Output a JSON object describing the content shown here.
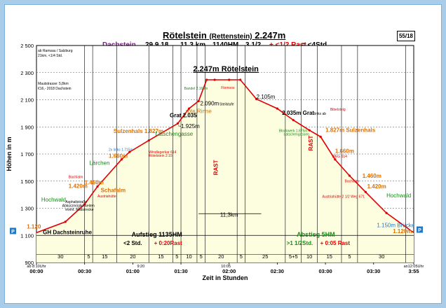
{
  "header": {
    "title": "Rötelstein",
    "title_alt": "(Rettenstein)",
    "title_height": "2.247m",
    "region": "Dachstein",
    "date": "29.9.18",
    "distance": "11,3 km",
    "elevation_gain": "1140HM",
    "walk_time": "3 1/2",
    "rest_time": "+ <1/2 Rast",
    "total_time": "= <4Std.",
    "page_number": "55/18"
  },
  "notes": {
    "top_left": [
      "ab Ramsau / Salzburg",
      "21km, <1/4 Std."
    ],
    "mid_left": [
      "Mautstrasse: 5,8km",
      "€16,-  2018  Dachstein"
    ]
  },
  "colors": {
    "area_fill": "#fdfde0",
    "profile_line": "#e00000",
    "green_label": "#1a8a1a",
    "orange_label": "#e07000",
    "blue_label": "#1f78c8",
    "purple_label": "#7a1f86",
    "frame": "#a9cde8"
  },
  "chart_data": {
    "type": "area",
    "title": "2.247m Rötelstein",
    "xlabel": "Zeit in Stunden",
    "ylabel": "Höhen in m",
    "x_unit": "minutes",
    "xlim": [
      0,
      235
    ],
    "ylim": [
      900,
      2500
    ],
    "y_ticks": [
      900,
      1100,
      1300,
      1500,
      1700,
      1900,
      2100,
      2300,
      2500
    ],
    "y_tick_labels": [
      "900",
      "1 100",
      "1 300",
      "1 500",
      "1 700",
      "1 900",
      "2 100",
      "2 300",
      "2 500"
    ],
    "x_ticks": [
      {
        "x": 0,
        "label": "00:00"
      },
      {
        "x": 30,
        "label": "00:30"
      },
      {
        "x": 60,
        "label": "01:00"
      },
      {
        "x": 90,
        "label": "01:30"
      },
      {
        "x": 120,
        "label": "02:00"
      },
      {
        "x": 150,
        "label": "02:30"
      },
      {
        "x": 180,
        "label": "03:00"
      },
      {
        "x": 210,
        "label": "03:30"
      },
      {
        "x": 235,
        "label": "3:55"
      }
    ],
    "x_start_label": "ab 8:10Uhr",
    "x_end_label": "an12:05Uhr",
    "x_mid_labels": [
      {
        "x": 65,
        "label": "9:20"
      },
      {
        "x": 118,
        "label": "10:05"
      }
    ],
    "profile": {
      "x": [
        0,
        18,
        30,
        38,
        53,
        58,
        70,
        88,
        95,
        101,
        106,
        111,
        120,
        127,
        137,
        150,
        160,
        170,
        177,
        186,
        195,
        205,
        218,
        235
      ],
      "y": [
        1120,
        1200,
        1330,
        1460,
        1660,
        1715,
        1800,
        1925,
        2035,
        2090,
        2247,
        2247,
        2247,
        2247,
        2105,
        2035,
        1950,
        1875,
        1827,
        1660,
        1540,
        1420,
        1265,
        1120
      ]
    },
    "segments": [
      {
        "start": 0,
        "end": 30,
        "label": "30"
      },
      {
        "start": 30,
        "end": 35,
        "label": "5"
      },
      {
        "start": 35,
        "end": 50,
        "label": "15"
      },
      {
        "start": 50,
        "end": 70,
        "label": "20"
      },
      {
        "start": 70,
        "end": 85,
        "label": "15"
      },
      {
        "start": 85,
        "end": 90,
        "label": "5"
      },
      {
        "start": 90,
        "end": 100,
        "label": "10"
      },
      {
        "start": 100,
        "end": 105,
        "label": "5"
      },
      {
        "start": 105,
        "end": 125,
        "label": "20"
      },
      {
        "start": 125,
        "end": 130,
        "label": "5"
      },
      {
        "start": 130,
        "end": 155,
        "label": "25"
      },
      {
        "start": 155,
        "end": 165,
        "label": "5+5"
      },
      {
        "start": 165,
        "end": 175,
        "label": "10"
      },
      {
        "start": 175,
        "end": 190,
        "label": "15"
      },
      {
        "start": 190,
        "end": 200,
        "label": "5"
      },
      {
        "start": 200,
        "end": 230,
        "label": "30"
      }
    ],
    "divider_lines": [
      30,
      35,
      50,
      70,
      85,
      90,
      100,
      105,
      125,
      130,
      155,
      165,
      175,
      190,
      200,
      230
    ],
    "distance_label": "11,3km",
    "ascent": {
      "line1": "Aufstieg 1135HM",
      "line2a": "<2 Std.",
      "line2b": "+ 0:20Rast"
    },
    "descent": {
      "line1": "Abstieg 5HM",
      "line2a": ">1 1/2Std.",
      "line2b": "+ 0:05 Rast"
    },
    "rest_markers": [
      {
        "x": 113,
        "y": 1600,
        "label": "RAST"
      },
      {
        "x": 172,
        "y": 1780,
        "label": "RAST"
      }
    ],
    "annotations": [
      {
        "x": 4,
        "y": 1110,
        "label": "GH Dachsteinruhe",
        "color": "#000000",
        "size": 8,
        "bold": true
      },
      {
        "x": -6,
        "y": 1150,
        "label": "1.120",
        "color": "#e07000",
        "size": 8,
        "bold": true
      },
      {
        "x": 3,
        "y": 1350,
        "label": "Hochwald",
        "color": "#1a8a1a",
        "size": 8,
        "bold": false
      },
      {
        "x": 18,
        "y": 1338,
        "label": "Asphaltstraße",
        "color": "#000000",
        "size": 5,
        "bold": false
      },
      {
        "x": 16,
        "y": 1310,
        "label": "Abkürzmöglichkeiten",
        "color": "#000000",
        "size": 5,
        "bold": false
      },
      {
        "x": 18,
        "y": 1282,
        "label": "event. Radstrecke",
        "color": "#000000",
        "size": 5,
        "bold": false
      },
      {
        "x": 20,
        "y": 1450,
        "label": "1.420m",
        "color": "#e07000",
        "size": 8,
        "bold": true
      },
      {
        "x": 20,
        "y": 1522,
        "label": "Bachlalm",
        "color": "#e00000",
        "size": 5,
        "bold": false
      },
      {
        "x": 30,
        "y": 1475,
        "label": "1.460m",
        "color": "#e07000",
        "size": 8,
        "bold": true
      },
      {
        "x": 40,
        "y": 1420,
        "label": "Schafalm",
        "color": "#e07000",
        "size": 8,
        "bold": true
      },
      {
        "x": 38,
        "y": 1380,
        "label": "Austriahütte",
        "color": "#e00000",
        "size": 5,
        "bold": false
      },
      {
        "x": 33,
        "y": 1620,
        "label": "Lärchen",
        "color": "#1a8a1a",
        "size": 8,
        "bold": false
      },
      {
        "x": 45,
        "y": 1672,
        "label": "1.660m",
        "color": "#e07000",
        "size": 8,
        "bold": true
      },
      {
        "x": 45,
        "y": 1722,
        "label": "2x links 1.715m",
        "color": "#1f78c8",
        "size": 5,
        "bold": false
      },
      {
        "x": 70,
        "y": 1705,
        "label": "Windlegerkar 614",
        "color": "#e00000",
        "size": 5,
        "bold": false
      },
      {
        "x": 70,
        "y": 1680,
        "label": "Rötelstein 2:15",
        "color": "#e00000",
        "size": 5,
        "bold": false
      },
      {
        "x": 48,
        "y": 1855,
        "label": "Sulzenhals 1.827m",
        "color": "#e07000",
        "size": 8,
        "bold": true
      },
      {
        "x": 74,
        "y": 1835,
        "label": "Latschengasse",
        "color": "#1a8a1a",
        "size": 8,
        "bold": false
      },
      {
        "x": 83,
        "y": 1970,
        "label": "Grat 2.035",
        "color": "#000000",
        "size": 8,
        "bold": true
      },
      {
        "x": 88,
        "y": 1890,
        "label": "~1.925m",
        "color": "#000000",
        "size": 8,
        "bold": false
      },
      {
        "x": 93,
        "y": 2002,
        "label": "rote Rinne",
        "color": "#e07000",
        "size": 8,
        "bold": false
      },
      {
        "x": 92,
        "y": 2175,
        "label": "Bandel 2.160m",
        "color": "#1a8a1a",
        "size": 5,
        "bold": false
      },
      {
        "x": 102,
        "y": 2058,
        "label": "2.090m",
        "color": "#000000",
        "size": 8,
        "bold": false
      },
      {
        "x": 114,
        "y": 2058,
        "label": "Steilstufe",
        "color": "#000000",
        "size": 5,
        "bold": false
      },
      {
        "x": 115,
        "y": 2180,
        "label": "Flomoos",
        "color": "#e00000",
        "size": 5,
        "bold": false
      },
      {
        "x": 137,
        "y": 2108,
        "label": "2.105m",
        "color": "#000000",
        "size": 8,
        "bold": false
      },
      {
        "x": 153,
        "y": 1990,
        "label": "2.035m Grat",
        "color": "#000000",
        "size": 8,
        "bold": true
      },
      {
        "x": 173,
        "y": 1990,
        "label": "links ab",
        "color": "#000000",
        "size": 5,
        "bold": false
      },
      {
        "x": 151,
        "y": 1862,
        "label": "Blockwerk 1.875m",
        "color": "#1a8a1a",
        "size": 5,
        "bold": false
      },
      {
        "x": 154,
        "y": 1838,
        "label": "Latschengassen",
        "color": "#1a8a1a",
        "size": 5,
        "bold": false
      },
      {
        "x": 183,
        "y": 2020,
        "label": "Bibelsteig",
        "color": "#e00000",
        "size": 5,
        "bold": false
      },
      {
        "x": 180,
        "y": 1862,
        "label": "1.827m Sulzenhals",
        "color": "#e07000",
        "size": 8,
        "bold": true
      },
      {
        "x": 186,
        "y": 1708,
        "label": "1.660m",
        "color": "#e07000",
        "size": 8,
        "bold": true
      },
      {
        "x": 184,
        "y": 1675,
        "label": "WEG 614",
        "color": "#e00000",
        "size": 5,
        "bold": false
      },
      {
        "x": 203,
        "y": 1525,
        "label": "1.460m",
        "color": "#e07000",
        "size": 8,
        "bold": true
      },
      {
        "x": 192,
        "y": 1492,
        "label": "Bachlalm",
        "color": "#e00000",
        "size": 5,
        "bold": false
      },
      {
        "x": 206,
        "y": 1448,
        "label": "1.420m",
        "color": "#e07000",
        "size": 8,
        "bold": true
      },
      {
        "x": 178,
        "y": 1378,
        "label": "Austriahütte 2 1/2 Weg 671",
        "color": "#e00000",
        "size": 5,
        "bold": false
      },
      {
        "x": 218,
        "y": 1380,
        "label": "Hochwald",
        "color": "#1a8a1a",
        "size": 8,
        "bold": false
      },
      {
        "x": 212,
        "y": 1160,
        "label": "1.150m Brücke",
        "color": "#1f78c8",
        "size": 8,
        "bold": false
      },
      {
        "x": 222,
        "y": 1118,
        "label": "1.120m",
        "color": "#e07000",
        "size": 8,
        "bold": true
      }
    ]
  }
}
